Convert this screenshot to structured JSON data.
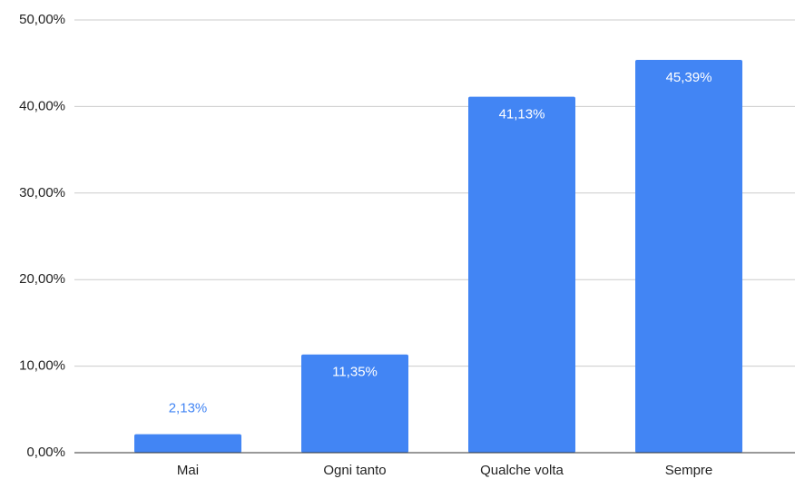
{
  "chart_data": {
    "type": "bar",
    "categories": [
      "Mai",
      "Ogni tanto",
      "Qualche volta",
      "Sempre"
    ],
    "values": [
      2.13,
      11.35,
      41.13,
      45.39
    ],
    "value_labels": [
      "2,13%",
      "11,35%",
      "41,13%",
      "45,39%"
    ],
    "color": "#4285f4",
    "ylim": [
      0,
      50
    ],
    "yticks": [
      {
        "value": 0,
        "label": "0,00%"
      },
      {
        "value": 10,
        "label": "10,00%"
      },
      {
        "value": 20,
        "label": "20,00%"
      },
      {
        "value": 30,
        "label": "30,00%"
      },
      {
        "value": 40,
        "label": "40,00%"
      },
      {
        "value": 50,
        "label": "50,00%"
      }
    ],
    "grid": true
  }
}
